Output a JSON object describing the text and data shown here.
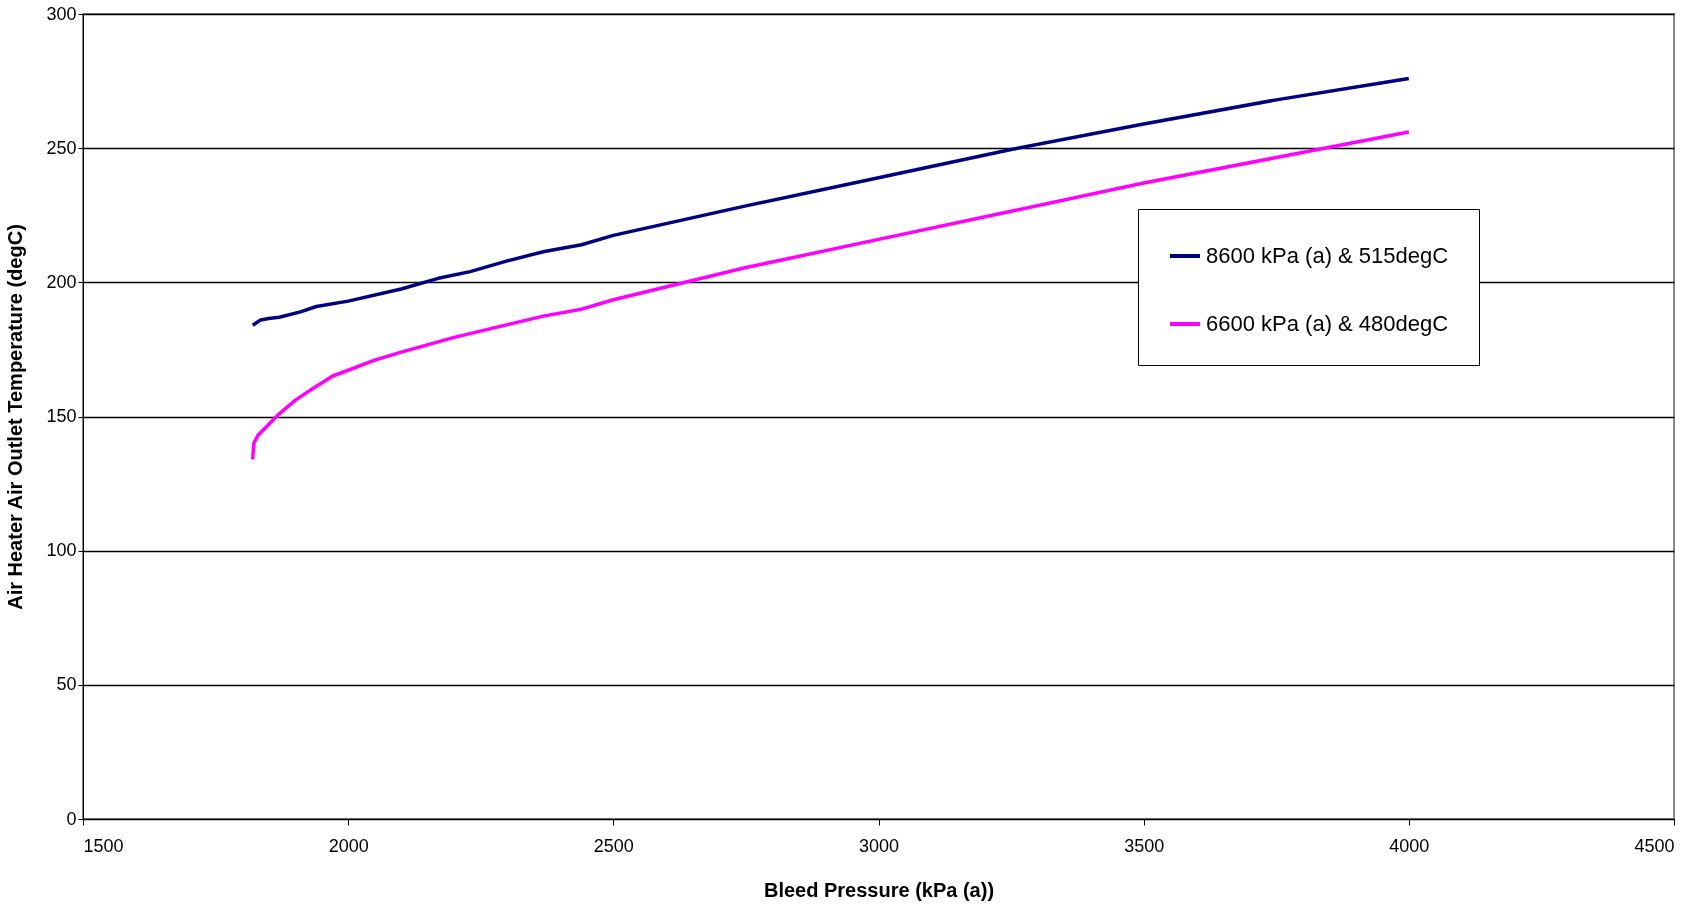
{
  "chart_data": {
    "type": "line",
    "xlabel": "Bleed Pressure (kPa (a))",
    "ylabel": "Air Heater Air Outlet Temperature (degC)",
    "xlim": [
      1500,
      4500
    ],
    "xticks": [
      1500,
      2000,
      2500,
      3000,
      3500,
      4000,
      4500
    ],
    "ylim": [
      0,
      300
    ],
    "yticks": [
      0,
      50,
      100,
      150,
      200,
      250,
      300
    ],
    "grid": "y",
    "legend": "top right",
    "marker": "none",
    "line_style": "solid",
    "series": [
      {
        "name": "8600 kPa (a) & 515degC",
        "color": "#000080",
        "x": [
          1820,
          1835,
          1850,
          1870,
          1910,
          1940,
          2000,
          2100,
          2170,
          2230,
          2300,
          2370,
          2440,
          2500,
          2750,
          3000,
          3250,
          3500,
          3750,
          4000
        ],
        "values": [
          184,
          186,
          186.5,
          187,
          189,
          191,
          193,
          197.5,
          201.5,
          204,
          208,
          211.5,
          214,
          217.5,
          228.5,
          239,
          249.5,
          259,
          268,
          276
        ]
      },
      {
        "name": "6600 kPa (a) & 480degC",
        "color": "#ff00ff",
        "x": [
          1820,
          1822,
          1830,
          1850,
          1870,
          1900,
          1930,
          1970,
          2050,
          2100,
          2200,
          2370,
          2440,
          2500,
          2750,
          3000,
          3250,
          3500,
          3750,
          4000
        ],
        "values": [
          134,
          140,
          143,
          147,
          151,
          156,
          160,
          165,
          171,
          174,
          179.5,
          187.5,
          190,
          193.5,
          205.5,
          216,
          226.5,
          237,
          246.5,
          256
        ]
      }
    ]
  }
}
